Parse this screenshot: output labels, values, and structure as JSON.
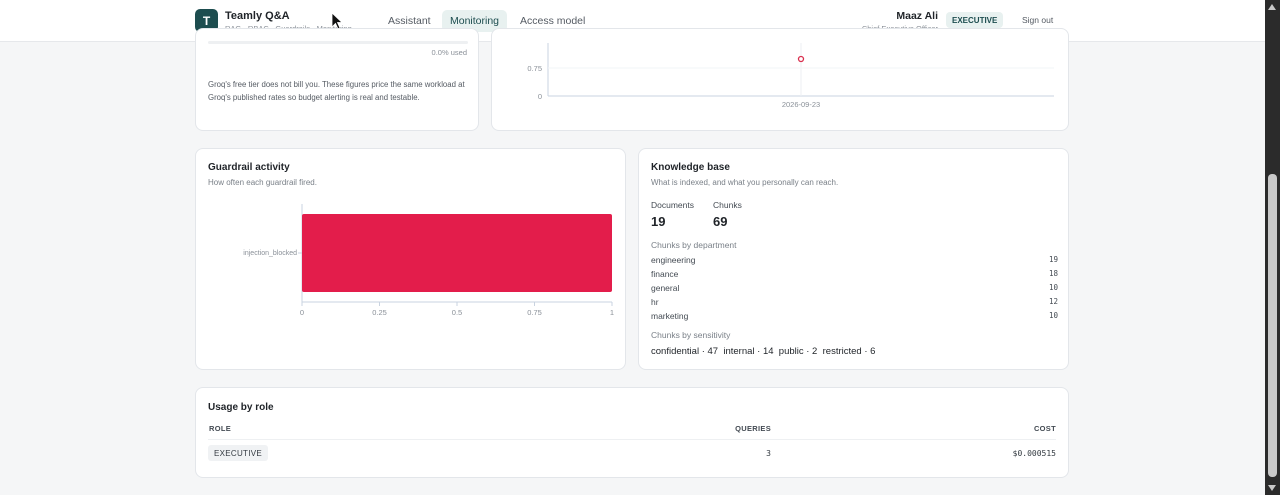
{
  "header": {
    "logo_letter": "T",
    "app_title": "Teamly Q&A",
    "app_subtitle": "RAG · RBAC · Guardrails · Monitoring",
    "nav": [
      {
        "label": "Assistant",
        "active": false
      },
      {
        "label": "Monitoring",
        "active": true
      },
      {
        "label": "Access model",
        "active": false
      }
    ],
    "user_name": "Maaz Ali",
    "user_title": "Chief Executive Officer",
    "role_badge": "EXECUTIVE",
    "sign_out": "Sign out"
  },
  "budget_card": {
    "used_label": "0.0% used",
    "note": "Groq's free tier does not bill you. These figures price the same workload at Groq's published rates so budget alerting is real and testable."
  },
  "trend_card": {
    "chart_data": {
      "type": "scatter",
      "y_ticks": [
        "0.75",
        "0"
      ],
      "x_tick": "2026-09-23",
      "points": [
        {
          "x": "2026-09-23",
          "y": 0.9
        }
      ]
    }
  },
  "guardrail_card": {
    "title": "Guardrail activity",
    "subtitle": "How often each guardrail fired.",
    "chart_data": {
      "type": "bar",
      "orientation": "horizontal",
      "categories": [
        "injection_blocked"
      ],
      "values": [
        1
      ],
      "xlim": [
        0,
        1
      ],
      "x_ticks": [
        "0",
        "0.25",
        "0.5",
        "0.75",
        "1"
      ],
      "color": "#e31d4b"
    }
  },
  "knowledge_card": {
    "title": "Knowledge base",
    "subtitle": "What is indexed, and what you personally can reach.",
    "documents_label": "Documents",
    "documents_value": "19",
    "chunks_label": "Chunks",
    "chunks_value": "69",
    "by_department_label": "Chunks by department",
    "departments": [
      {
        "name": "engineering",
        "count": "19"
      },
      {
        "name": "finance",
        "count": "18"
      },
      {
        "name": "general",
        "count": "10"
      },
      {
        "name": "hr",
        "count": "12"
      },
      {
        "name": "marketing",
        "count": "10"
      }
    ],
    "by_sensitivity_label": "Chunks by sensitivity",
    "sensitivity_line": "confidential · 47  internal · 14  public · 2  restricted · 6"
  },
  "usage_card": {
    "title": "Usage by role",
    "columns": [
      "ROLE",
      "QUERIES",
      "COST"
    ],
    "rows": [
      {
        "role": "EXECUTIVE",
        "queries": "3",
        "cost": "$0.000515"
      }
    ]
  }
}
